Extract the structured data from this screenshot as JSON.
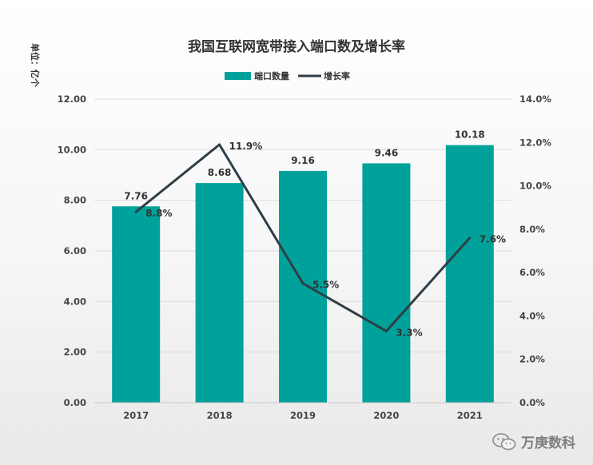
{
  "chart_data": {
    "type": "bar+line",
    "title": "我国互联网宽带接入端口数及增长率",
    "ylabel_left": "单位：亿个",
    "categories": [
      "2017",
      "2018",
      "2019",
      "2020",
      "2021"
    ],
    "series": [
      {
        "name": "端口数量",
        "type": "bar",
        "axis": "left",
        "values": [
          7.76,
          8.68,
          9.16,
          9.46,
          10.18
        ],
        "labels": [
          "7.76",
          "8.68",
          "9.16",
          "9.46",
          "10.18"
        ],
        "color": "#00a19a"
      },
      {
        "name": "增长率",
        "type": "line",
        "axis": "right",
        "values": [
          8.8,
          11.9,
          5.5,
          3.3,
          7.6
        ],
        "labels": [
          "8.8%",
          "11.9%",
          "5.5%",
          "3.3%",
          "7.6%"
        ],
        "color": "#2f3e46"
      }
    ],
    "ylim_left": [
      0,
      12
    ],
    "ylim_right": [
      0,
      14
    ],
    "left_ticks": [
      "0.00",
      "2.00",
      "4.00",
      "6.00",
      "8.00",
      "10.00",
      "12.00"
    ],
    "right_ticks": [
      "0.0%",
      "2.0%",
      "4.0%",
      "6.0%",
      "8.0%",
      "10.0%",
      "12.0%",
      "14.0%"
    ],
    "legend_position": "top-center",
    "grid": true
  },
  "watermark": {
    "text": "万庚数科",
    "icon": "wechat-icon"
  }
}
